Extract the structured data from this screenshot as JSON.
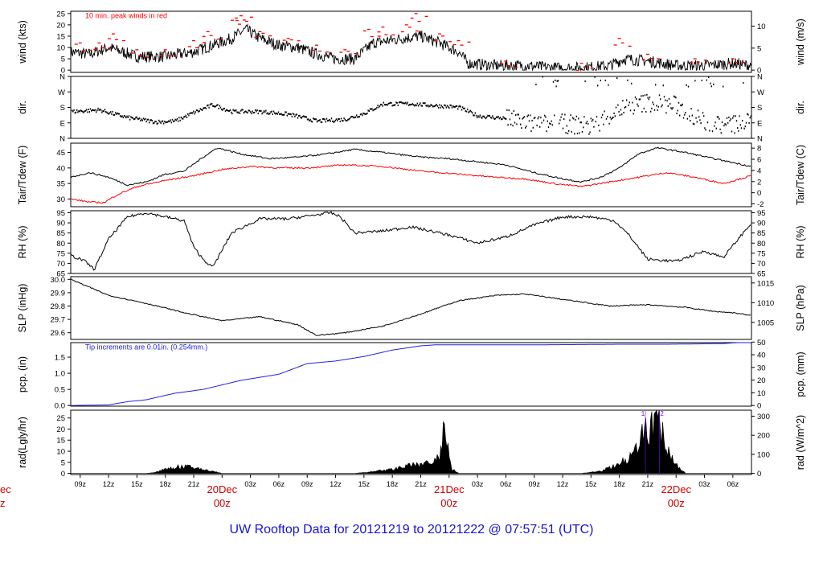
{
  "footer": {
    "prefix": "UW Rooftop Data for",
    "start": "20121219",
    "to": "to",
    "end": "20121222",
    "at": "@ 07:57:51",
    "tz": "(UTC)"
  },
  "colors": {
    "frame": "#000000",
    "observed": "#000000",
    "peak_wind": "#ff0000",
    "dewpoint": "#ff0000",
    "precip": "#2020e0",
    "radiation": "#000000",
    "date_label": "#cc0000",
    "notes": "#2020e0",
    "rad_markers": "#8000ff",
    "footer": "#1515d0"
  },
  "chart_data": {
    "type": "line",
    "x_axis": {
      "unit": "hours UTC",
      "start": "2012-12-19 08:00",
      "end": "2012-12-22 07:58",
      "hour_ticks": [
        "09z",
        "12z",
        "15z",
        "18z",
        "21z",
        "00z",
        "03z",
        "06z",
        "09z",
        "12z",
        "15z",
        "18z",
        "21z",
        "00z",
        "03z",
        "06z",
        "09z",
        "12z",
        "15z",
        "18z",
        "21z",
        "00z",
        "03z",
        "06z"
      ],
      "tick_dates": [
        "2012-12-19 09:00",
        "2012-12-19 12:00",
        "2012-12-19 15:00",
        "2012-12-19 18:00",
        "2012-12-19 21:00",
        "2012-12-20 00:00",
        "2012-12-20 03:00",
        "2012-12-20 06:00",
        "2012-12-20 09:00",
        "2012-12-20 12:00",
        "2012-12-20 15:00",
        "2012-12-20 18:00",
        "2012-12-20 21:00",
        "2012-12-21 00:00",
        "2012-12-21 03:00",
        "2012-12-21 06:00",
        "2012-12-21 09:00",
        "2012-12-21 12:00",
        "2012-12-21 15:00",
        "2012-12-21 18:00",
        "2012-12-21 21:00",
        "2012-12-22 00:00",
        "2012-12-22 03:00",
        "2012-12-22 06:00"
      ],
      "hidden_tick_labels": [
        "00z"
      ],
      "date_labels": [
        {
          "date": "20Dec",
          "hour": "00z",
          "at": "2012-12-20 00:00"
        },
        {
          "date": "21Dec",
          "hour": "00z",
          "at": "2012-12-21 00:00"
        },
        {
          "date": "22Dec",
          "hour": "00z",
          "at": "2012-12-22 00:00"
        }
      ],
      "clipped_date_label": {
        "date": "ec",
        "hour": "z",
        "at": "2012-12-19 00:00"
      }
    },
    "panels": [
      {
        "id": "wind",
        "left_label": "wind (kts)",
        "right_label": "wind (m/s)",
        "left_ticks": [
          0,
          5,
          10,
          15,
          20,
          25
        ],
        "left_range": [
          -1,
          26
        ],
        "right_ticks": [
          0,
          5,
          10
        ],
        "right_scale": 0.5144,
        "note": "10 min. peak winds in red",
        "series": [
          {
            "type": "line",
            "x": [
              "2012-12-19 08:00",
              "2012-12-19 10:00",
              "2012-12-19 12:00",
              "2012-12-19 15:00",
              "2012-12-19 18:00",
              "2012-12-19 21:00",
              "2012-12-19 23:00",
              "2012-12-20 01:00",
              "2012-12-20 02:30",
              "2012-12-20 04:00",
              "2012-12-20 06:00",
              "2012-12-20 08:00",
              "2012-12-20 10:00",
              "2012-12-20 12:00",
              "2012-12-20 14:00",
              "2012-12-20 16:00",
              "2012-12-20 19:00",
              "2012-12-20 21:00",
              "2012-12-20 23:00",
              "2012-12-21 01:00",
              "2012-12-21 02:00",
              "2012-12-21 05:00",
              "2012-12-21 08:00",
              "2012-12-21 11:00",
              "2012-12-21 14:00",
              "2012-12-21 17:00",
              "2012-12-21 18:30",
              "2012-12-21 21:00",
              "2012-12-22 00:00",
              "2012-12-22 03:00",
              "2012-12-22 06:00",
              "2012-12-22 07:58"
            ],
            "y": [
              8,
              7,
              10,
              6,
              6,
              8,
              11,
              14,
              18,
              14,
              11,
              10,
              7,
              5,
              5,
              12,
              14,
              15,
              12,
              8,
              3,
              2,
              2,
              1,
              1,
              2,
              5,
              4,
              2,
              2,
              3,
              2
            ]
          },
          {
            "type": "markers",
            "x": [
              "2012-12-19 09:00",
              "2012-12-19 11:00",
              "2012-12-19 12:30",
              "2012-12-19 15:00",
              "2012-12-19 18:00",
              "2012-12-19 21:00",
              "2012-12-19 22:30",
              "2012-12-20 01:30",
              "2012-12-20 02:00",
              "2012-12-20 04:00",
              "2012-12-20 07:00",
              "2012-12-20 10:00",
              "2012-12-20 13:00",
              "2012-12-20 15:30",
              "2012-12-20 17:00",
              "2012-12-20 19:30",
              "2012-12-20 20:30",
              "2012-12-20 23:00",
              "2012-12-21 01:00",
              "2012-12-21 06:00",
              "2012-12-21 14:00",
              "2012-12-21 18:00",
              "2012-12-21 21:00",
              "2012-12-22 02:00",
              "2012-12-22 06:00"
            ],
            "y": [
              12,
              12,
              16,
              9,
              9,
              13,
              17,
              23,
              24,
              17,
              14,
              11,
              9,
              18,
              19,
              20,
              25,
              16,
              13,
              4,
              3,
              14,
              7,
              5,
              5
            ]
          }
        ]
      },
      {
        "id": "dir",
        "left_label": "dir.",
        "right_label": "dir.",
        "left_ticks": [
          {
            "v": 0,
            "t": "N"
          },
          {
            "v": 90,
            "t": "E"
          },
          {
            "v": 180,
            "t": "S"
          },
          {
            "v": 270,
            "t": "W"
          },
          {
            "v": 360,
            "t": "N"
          }
        ],
        "left_range": [
          0,
          360
        ],
        "series": [
          {
            "type": "points",
            "x": [
              "2012-12-19 08:00",
              "2012-12-19 11:00",
              "2012-12-19 14:00",
              "2012-12-19 17:00",
              "2012-12-19 19:00",
              "2012-12-19 21:00",
              "2012-12-19 23:00",
              "2012-12-20 01:00",
              "2012-12-20 04:00",
              "2012-12-20 07:00",
              "2012-12-20 10:00",
              "2012-12-20 13:00",
              "2012-12-20 15:00",
              "2012-12-20 17:00",
              "2012-12-20 20:00",
              "2012-12-21 01:00",
              "2012-12-21 03:00",
              "2012-12-21 06:00",
              "2012-12-21 09:00",
              "2012-12-21 12:00",
              "2012-12-21 15:00",
              "2012-12-21 18:00",
              "2012-12-21 21:00",
              "2012-12-22 00:00",
              "2012-12-22 03:00",
              "2012-12-22 06:00",
              "2012-12-22 07:58"
            ],
            "y": [
              155,
              165,
              120,
              95,
              100,
              150,
              195,
              155,
              155,
              140,
              100,
              110,
              145,
              200,
              200,
              180,
              130,
              115,
              80,
              85,
              70,
              170,
              210,
              190,
              90,
              80,
              95
            ]
          }
        ]
      },
      {
        "id": "temp",
        "left_label": "Tair/Tdew (F)",
        "right_label": "Tair/Tdew (C)",
        "left_ticks": [
          30,
          35,
          40,
          45
        ],
        "left_range": [
          27.5,
          48
        ],
        "right_ticks": [
          -2,
          0,
          2,
          4,
          6,
          8
        ],
        "series": [
          {
            "name": "Tair",
            "type": "line",
            "x": [
              "2012-12-19 08:00",
              "2012-12-19 10:00",
              "2012-12-19 12:00",
              "2012-12-19 14:00",
              "2012-12-19 16:00",
              "2012-12-19 18:00",
              "2012-12-19 20:00",
              "2012-12-19 22:00",
              "2012-12-19 23:30",
              "2012-12-20 02:00",
              "2012-12-20 05:00",
              "2012-12-20 08:00",
              "2012-12-20 11:00",
              "2012-12-20 14:00",
              "2012-12-20 17:00",
              "2012-12-20 21:00",
              "2012-12-21 00:00",
              "2012-12-21 03:00",
              "2012-12-21 06:00",
              "2012-12-21 09:00",
              "2012-12-21 12:00",
              "2012-12-21 14:00",
              "2012-12-21 16:00",
              "2012-12-21 18:00",
              "2012-12-21 20:00",
              "2012-12-21 22:00",
              "2012-12-22 01:00",
              "2012-12-22 04:00",
              "2012-12-22 07:58"
            ],
            "y": [
              37,
              38.5,
              37,
              34.5,
              35.5,
              38,
              39,
              43.5,
              46.5,
              44.5,
              43,
              43.5,
              44.5,
              46,
              45,
              43.5,
              43,
              42,
              41,
              38.5,
              36.5,
              35.5,
              37,
              40,
              44.5,
              46.5,
              45,
              43,
              40.5
            ]
          },
          {
            "name": "Tdew",
            "type": "line",
            "x": [
              "2012-12-19 08:00",
              "2012-12-19 10:00",
              "2012-12-19 11:30",
              "2012-12-19 13:00",
              "2012-12-19 15:00",
              "2012-12-19 18:00",
              "2012-12-19 21:00",
              "2012-12-20 00:00",
              "2012-12-20 03:00",
              "2012-12-20 06:00",
              "2012-12-20 09:00",
              "2012-12-20 13:00",
              "2012-12-20 17:00",
              "2012-12-20 21:00",
              "2012-12-21 01:00",
              "2012-12-21 05:00",
              "2012-12-21 08:00",
              "2012-12-21 11:00",
              "2012-12-21 14:00",
              "2012-12-21 17:00",
              "2012-12-21 20:00",
              "2012-12-21 23:00",
              "2012-12-22 02:00",
              "2012-12-22 05:00",
              "2012-12-22 07:58"
            ],
            "y": [
              30,
              29,
              28.8,
              31.5,
              34,
              36,
              37.5,
              39.5,
              40.5,
              40,
              40,
              41,
              40.5,
              39,
              38,
              37,
              36.5,
              35,
              34,
              35.5,
              37,
              38.5,
              37,
              35,
              37.5
            ]
          }
        ]
      },
      {
        "id": "rh",
        "left_label": "RH (%)",
        "right_label": "RH (%)",
        "left_ticks": [
          65,
          70,
          75,
          80,
          85,
          90,
          95
        ],
        "left_range": [
          65,
          96
        ],
        "right_ticks": [
          65,
          70,
          75,
          80,
          85,
          90,
          95
        ],
        "series": [
          {
            "type": "line",
            "x": [
              "2012-12-19 08:00",
              "2012-12-19 09:30",
              "2012-12-19 10:30",
              "2012-12-19 12:00",
              "2012-12-19 14:00",
              "2012-12-19 16:00",
              "2012-12-19 18:00",
              "2012-12-19 20:00",
              "2012-12-19 21:00",
              "2012-12-19 22:00",
              "2012-12-19 23:00",
              "2012-12-20 01:00",
              "2012-12-20 04:00",
              "2012-12-20 07:00",
              "2012-12-20 10:00",
              "2012-12-20 11:30",
              "2012-12-20 12:30",
              "2012-12-20 14:00",
              "2012-12-20 17:00",
              "2012-12-20 20:00",
              "2012-12-21 00:00",
              "2012-12-21 03:00",
              "2012-12-21 06:00",
              "2012-12-21 09:00",
              "2012-12-21 12:00",
              "2012-12-21 15:00",
              "2012-12-21 17:30",
              "2012-12-21 19:00",
              "2012-12-21 21:00",
              "2012-12-22 00:00",
              "2012-12-22 03:00",
              "2012-12-22 05:00",
              "2012-12-22 07:58"
            ],
            "y": [
              74,
              71,
              67,
              82,
              93,
              95,
              93,
              91,
              78,
              72,
              68,
              85,
              92,
              92,
              94,
              95,
              93,
              85,
              86,
              88,
              84,
              80,
              83,
              89,
              93,
              93,
              91,
              84,
              72,
              71,
              76,
              73,
              90
            ]
          }
        ]
      },
      {
        "id": "slp",
        "left_label": "SLP (inHg)",
        "right_label": "SLP (hPa)",
        "left_ticks": [
          29.6,
          29.7,
          29.8,
          29.9,
          30.0
        ],
        "left_range": [
          29.55,
          30.02
        ],
        "right_ticks": [
          1005,
          1010,
          1015
        ],
        "series": [
          {
            "type": "line",
            "x": [
              "2012-12-19 08:00",
              "2012-12-19 12:00",
              "2012-12-19 16:00",
              "2012-12-19 20:00",
              "2012-12-20 00:00",
              "2012-12-20 04:00",
              "2012-12-20 08:00",
              "2012-12-20 10:00",
              "2012-12-20 13:00",
              "2012-12-20 17:00",
              "2012-12-20 21:00",
              "2012-12-21 01:00",
              "2012-12-21 05:00",
              "2012-12-21 08:00",
              "2012-12-21 11:00",
              "2012-12-21 14:00",
              "2012-12-21 17:00",
              "2012-12-21 21:00",
              "2012-12-22 01:00",
              "2012-12-22 04:00",
              "2012-12-22 06:00",
              "2012-12-22 07:58"
            ],
            "y": [
              30.0,
              29.88,
              29.82,
              29.75,
              29.69,
              29.72,
              29.66,
              29.58,
              29.6,
              29.65,
              29.74,
              29.84,
              29.88,
              29.89,
              29.86,
              29.83,
              29.8,
              29.81,
              29.79,
              29.76,
              29.75,
              29.73
            ]
          }
        ]
      },
      {
        "id": "pcp",
        "left_label": "pcp. (in)",
        "right_label": "pcp. (mm)",
        "left_ticks": [
          0.0,
          0.5,
          1.0,
          1.5
        ],
        "left_range": [
          -0.02,
          1.95
        ],
        "right_ticks": [
          0,
          10,
          20,
          30,
          40,
          50
        ],
        "note": "Tip increments are 0.01in. (0.254mm.)",
        "series": [
          {
            "type": "line",
            "x": [
              "2012-12-19 08:00",
              "2012-12-19 12:00",
              "2012-12-19 14:00",
              "2012-12-19 16:00",
              "2012-12-19 19:00",
              "2012-12-19 22:00",
              "2012-12-20 02:00",
              "2012-12-20 06:00",
              "2012-12-20 09:00",
              "2012-12-20 12:00",
              "2012-12-20 15:00",
              "2012-12-20 18:00",
              "2012-12-20 21:00",
              "2012-12-20 22:30",
              "2012-12-21 02:00",
              "2012-12-21 08:00",
              "2012-12-21 14:00",
              "2012-12-21 18:00",
              "2012-12-21 23:00",
              "2012-12-22 05:00",
              "2012-12-22 07:58"
            ],
            "y": [
              0.0,
              0.02,
              0.12,
              0.18,
              0.38,
              0.5,
              0.78,
              0.97,
              1.3,
              1.38,
              1.52,
              1.72,
              1.85,
              1.88,
              1.88,
              1.88,
              1.89,
              1.9,
              1.9,
              1.92,
              1.98
            ]
          }
        ]
      },
      {
        "id": "rad",
        "left_label": "rad(Lgly/hr)",
        "right_label": "rad (W/m^2)",
        "left_ticks": [
          0,
          5,
          10,
          15,
          20,
          25
        ],
        "left_range": [
          -0.5,
          28.5
        ],
        "right_ticks": [
          0,
          100,
          200,
          300
        ],
        "markers": [
          {
            "label": "1",
            "at": "2012-12-21 20:45"
          },
          {
            "label": "2",
            "at": "2012-12-21 22:15"
          }
        ],
        "series": [
          {
            "type": "area",
            "x": [
              "2012-12-19 08:00",
              "2012-12-19 16:00",
              "2012-12-19 17:00",
              "2012-12-19 18:00",
              "2012-12-19 19:00",
              "2012-12-19 20:00",
              "2012-12-19 21:00",
              "2012-12-19 22:00",
              "2012-12-19 23:00",
              "2012-12-20 00:00",
              "2012-12-20 14:00",
              "2012-12-20 16:00",
              "2012-12-20 18:00",
              "2012-12-20 20:00",
              "2012-12-20 22:00",
              "2012-12-20 23:00",
              "2012-12-20 23:30",
              "2012-12-21 00:00",
              "2012-12-21 00:15",
              "2012-12-21 01:00",
              "2012-12-21 14:00",
              "2012-12-21 16:00",
              "2012-12-21 18:00",
              "2012-12-21 19:00",
              "2012-12-21 20:00",
              "2012-12-21 21:00",
              "2012-12-21 22:00",
              "2012-12-21 23:00",
              "2012-12-22 00:00",
              "2012-12-22 01:00",
              "2012-12-22 07:58"
            ],
            "y": [
              0,
              0,
              0.5,
              1.8,
              2.8,
              3.0,
              2.5,
              1.8,
              1.0,
              0,
              0,
              0.8,
              1.8,
              3.5,
              5,
              7,
              20,
              8,
              2,
              0,
              0,
              1,
              4,
              8,
              14,
              20,
              25,
              12,
              4,
              0,
              0
            ]
          }
        ]
      }
    ]
  }
}
